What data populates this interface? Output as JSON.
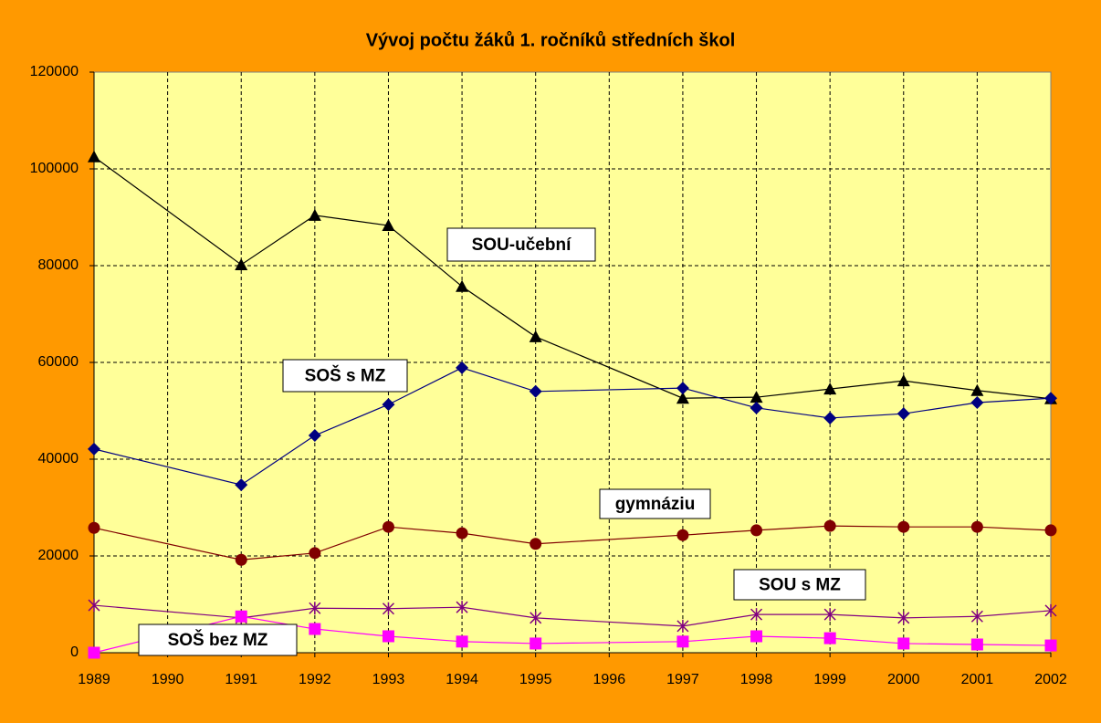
{
  "chart_data": {
    "type": "line",
    "title": "Vývoj počtu žáků 1. ročníků středních škol",
    "x": [
      1989,
      1991,
      1992,
      1993,
      1994,
      1995,
      1997,
      1998,
      1999,
      2000,
      2001,
      2002
    ],
    "xlim": [
      1989,
      2002
    ],
    "xticks": [
      1989,
      1990,
      1991,
      1992,
      1993,
      1994,
      1995,
      1996,
      1997,
      1998,
      1999,
      2000,
      2001,
      2002
    ],
    "ylim": [
      0,
      120000
    ],
    "yticks": [
      0,
      20000,
      40000,
      60000,
      80000,
      100000,
      120000
    ],
    "grid": true,
    "series": [
      {
        "name": "SOU-učební",
        "color": "#000000",
        "marker": "triangle",
        "values": [
          102500,
          80200,
          90400,
          88300,
          75700,
          65300,
          52600,
          52800,
          54500,
          56200,
          54200,
          52500
        ]
      },
      {
        "name": "SOŠ s MZ",
        "color": "#000080",
        "marker": "diamond",
        "values": [
          42100,
          34700,
          44900,
          51300,
          58900,
          54000,
          54700,
          50600,
          48500,
          49400,
          51700,
          52600
        ]
      },
      {
        "name": "gymnáziu",
        "color": "#800000",
        "marker": "circle",
        "values": [
          25800,
          19200,
          20600,
          26000,
          24700,
          22500,
          24300,
          25300,
          26200,
          26000,
          26000,
          25300
        ]
      },
      {
        "name": "SOU s MZ",
        "color": "#800080",
        "marker": "star",
        "values": [
          9800,
          7200,
          9200,
          9100,
          9400,
          7200,
          5500,
          7900,
          7900,
          7200,
          7500,
          8700
        ]
      },
      {
        "name": "SOŠ bez MZ",
        "color": "#FF00FF",
        "marker": "square",
        "values": [
          0,
          7500,
          4900,
          3400,
          2300,
          1900,
          2300,
          3400,
          3000,
          1900,
          1700,
          1500
        ]
      }
    ]
  }
}
